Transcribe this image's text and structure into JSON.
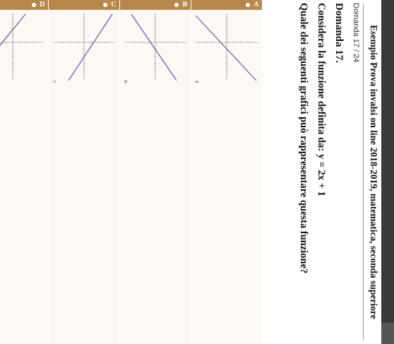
{
  "page": {
    "title": "Esempio Prova invalsi on line 2018-2019, matematica, seconda superiore",
    "counter": "Domanda 17 / 24",
    "question_number": "Domanda 17.",
    "question_text": "Considera la funzione definita da: y = 2x + 1",
    "question_prompt": "Quale dei seguenti grafici può rappresentare questa funzione?"
  },
  "options": [
    {
      "letter": "A",
      "caption": "A",
      "selected": false,
      "slope": "positive"
    },
    {
      "letter": "B",
      "caption": "B",
      "selected": false,
      "slope": "positive"
    },
    {
      "letter": "C",
      "caption": "C",
      "selected": false,
      "slope": "negative"
    },
    {
      "letter": "D",
      "caption": "D",
      "selected": false,
      "slope": "negative"
    }
  ],
  "colors": {
    "option_header": "#b7884c",
    "option_body": "#fdf8f3",
    "line": "#5a5aa8"
  }
}
